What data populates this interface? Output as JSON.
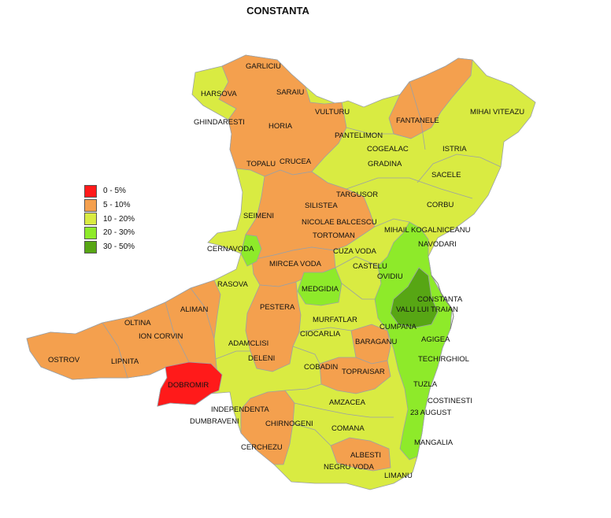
{
  "title": "CONSTANTA",
  "colors": {
    "c0_5": "#ff1a1a",
    "c5_10": "#f4a04e",
    "c10_20": "#d9eb42",
    "c20_30": "#8eea2a",
    "c30_50": "#57a614",
    "border": "#9aa0a6",
    "coast": "#7a7a7a"
  },
  "legend": [
    {
      "label": "0 - 5%",
      "color": "#ff1a1a"
    },
    {
      "label": "5 - 10%",
      "color": "#f4a04e"
    },
    {
      "label": "10 - 20%",
      "color": "#d9eb42"
    },
    {
      "label": "20 - 30%",
      "color": "#8eea2a"
    },
    {
      "label": "30 - 50%",
      "color": "#57a614"
    }
  ],
  "labels": {
    "garliciu": "GARLICIU",
    "harsova": "HARSOVA",
    "saraiu": "SARAIU",
    "vulturu": "VULTURU",
    "fantanele": "FANTANELE",
    "mihai_viteazu": "MIHAI VITEAZU",
    "ghindaresti": "GHINDARESTI",
    "horia": "HORIA",
    "pantelimon": "PANTELIMON",
    "cogealac": "COGEALAC",
    "istria": "ISTRIA",
    "topalu": "TOPALU",
    "crucea": "CRUCEA",
    "gradina": "GRADINA",
    "sacele": "SACELE",
    "targusor": "TARGUSOR",
    "silistea": "SILISTEA",
    "corbu": "CORBU",
    "seimeni": "SEIMENI",
    "nicolae_balcescu": "NICOLAE BALCESCU",
    "tortoman": "TORTOMAN",
    "mihail_kogalniceanu": "MIHAIL KOGALNICEANU",
    "navodari": "NAVODARI",
    "cernavoda": "CERNAVODA",
    "cuza_voda": "CUZA VODA",
    "mircea_voda": "MIRCEA VODA",
    "castelu": "CASTELU",
    "ovidiu": "OVIDIU",
    "rasova": "RASOVA",
    "medgidia": "MEDGIDIA",
    "constanta": "CONSTANTA",
    "aliman": "ALIMAN",
    "pestera": "PESTERA",
    "valu_lui_traian": "VALU LUI TRAIAN",
    "murfatlar": "MURFATLAR",
    "oltina": "OLTINA",
    "cumpana": "CUMPANA",
    "ion_corvin": "ION CORVIN",
    "ciocarlia": "CIOCARLIA",
    "agigea": "AGIGEA",
    "adamclisi": "ADAMCLISI",
    "baraganu": "BARAGANU",
    "ostrov": "OSTROV",
    "deleni": "DELENI",
    "lipnita": "LIPNITA",
    "techirghiol": "TECHIRGHIOL",
    "cobadin": "COBADIN",
    "topraisar": "TOPRAISAR",
    "dobromir": "DOBROMIR",
    "tuzla": "TUZLA",
    "costinesti": "COSTINESTI",
    "amzacea": "AMZACEA",
    "independenta": "INDEPENDENTA",
    "23_august": "23 AUGUST",
    "dumbraveni": "DUMBRAVENI",
    "chirnogeni": "CHIRNOGENI",
    "comana": "COMANA",
    "mangalia": "MANGALIA",
    "cerchezu": "CERCHEZU",
    "albesti": "ALBESTI",
    "negru_voda": "NEGRU VODA",
    "limanu": "LIMANU"
  }
}
